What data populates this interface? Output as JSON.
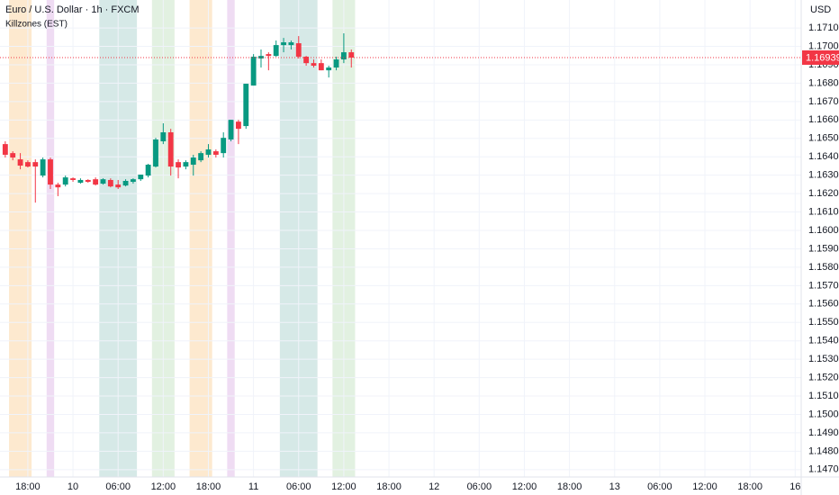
{
  "chart_data": {
    "type": "candlestick",
    "title": "Euro / U.S. Dollar · 1h · FXCM",
    "indicator": "Killzones (EST)",
    "currency": "USD",
    "up_color": "#089981",
    "down_color": "#f23645",
    "grid": true,
    "xlim": [
      -9.7,
      96.8
    ],
    "ylim": [
      1.1466,
      1.17252
    ],
    "xticks": [
      {
        "value": -6,
        "label": "18:00"
      },
      {
        "value": 0,
        "label": "10"
      },
      {
        "value": 6,
        "label": "06:00"
      },
      {
        "value": 12,
        "label": "12:00"
      },
      {
        "value": 18,
        "label": "18:00"
      },
      {
        "value": 24,
        "label": "11"
      },
      {
        "value": 30,
        "label": "06:00"
      },
      {
        "value": 36,
        "label": "12:00"
      },
      {
        "value": 42,
        "label": "18:00"
      },
      {
        "value": 48,
        "label": "12"
      },
      {
        "value": 54,
        "label": "06:00"
      },
      {
        "value": 60,
        "label": "12:00"
      },
      {
        "value": 66,
        "label": "18:00"
      },
      {
        "value": 72,
        "label": "13"
      },
      {
        "value": 78,
        "label": "06:00"
      },
      {
        "value": 84,
        "label": "12:00"
      },
      {
        "value": 90,
        "label": "18:00"
      },
      {
        "value": 96,
        "label": "16"
      }
    ],
    "yticks": [
      {
        "value": 1.147,
        "label": "1.14700"
      },
      {
        "value": 1.148,
        "label": "1.14800"
      },
      {
        "value": 1.149,
        "label": "1.14900"
      },
      {
        "value": 1.15,
        "label": "1.15000"
      },
      {
        "value": 1.151,
        "label": "1.15100"
      },
      {
        "value": 1.152,
        "label": "1.15200"
      },
      {
        "value": 1.153,
        "label": "1.15300"
      },
      {
        "value": 1.154,
        "label": "1.15400"
      },
      {
        "value": 1.155,
        "label": "1.15500"
      },
      {
        "value": 1.156,
        "label": "1.15600"
      },
      {
        "value": 1.157,
        "label": "1.15700"
      },
      {
        "value": 1.158,
        "label": "1.15800"
      },
      {
        "value": 1.159,
        "label": "1.15900"
      },
      {
        "value": 1.16,
        "label": "1.16000"
      },
      {
        "value": 1.161,
        "label": "1.16100"
      },
      {
        "value": 1.162,
        "label": "1.16200"
      },
      {
        "value": 1.163,
        "label": "1.16300"
      },
      {
        "value": 1.164,
        "label": "1.16400"
      },
      {
        "value": 1.165,
        "label": "1.16500"
      },
      {
        "value": 1.166,
        "label": "1.16600"
      },
      {
        "value": 1.167,
        "label": "1.16700"
      },
      {
        "value": 1.168,
        "label": "1.16800"
      },
      {
        "value": 1.169,
        "label": "1.16900"
      },
      {
        "value": 1.17,
        "label": "1.17000"
      },
      {
        "value": 1.171,
        "label": "1.17100"
      }
    ],
    "zones": [
      {
        "start": -8.5,
        "end": -5.5,
        "color": "#fde9cf"
      },
      {
        "start": -3.5,
        "end": -2.5,
        "color": "#efdcf3"
      },
      {
        "start": 3.5,
        "end": 8.5,
        "color": "#d6e9e7"
      },
      {
        "start": 10.5,
        "end": 13.5,
        "color": "#e2f1e1"
      },
      {
        "start": 15.5,
        "end": 18.5,
        "color": "#fde9cf"
      },
      {
        "start": 20.5,
        "end": 21.5,
        "color": "#efdcf3"
      },
      {
        "start": 27.5,
        "end": 32.5,
        "color": "#d6e9e7"
      },
      {
        "start": 34.5,
        "end": 37.5,
        "color": "#e2f1e1"
      }
    ],
    "last_price": 1.16939,
    "x": [
      -9,
      -8,
      -7,
      -6,
      -5,
      -4,
      -3,
      -2,
      -1,
      0,
      1,
      2,
      3,
      4,
      5,
      6,
      7,
      8,
      9,
      10,
      11,
      12,
      13,
      14,
      15,
      16,
      17,
      18,
      19,
      20,
      21,
      22,
      23,
      24,
      25,
      26,
      27,
      28,
      29,
      30,
      31,
      32,
      33,
      34,
      35,
      36,
      37
    ],
    "open": [
      1.16469,
      1.1642,
      1.16386,
      1.16371,
      1.16371,
      1.16298,
      1.16386,
      1.16249,
      1.16249,
      1.16283,
      1.16259,
      1.16274,
      1.16278,
      1.16254,
      1.16274,
      1.16249,
      1.16244,
      1.16264,
      1.16278,
      1.16298,
      1.16347,
      1.16484,
      1.16533,
      1.16371,
      1.16347,
      1.16357,
      1.16381,
      1.16411,
      1.1643,
      1.1642,
      1.16494,
      1.16591,
      1.16567,
      1.16787,
      1.16934,
      1.16958,
      1.16948,
      1.17007,
      1.17007,
      1.17017,
      1.16944,
      1.16909,
      1.16909,
      1.1687,
      1.16885,
      1.16929,
      1.16968
    ],
    "high": [
      1.16484,
      1.1643,
      1.1642,
      1.16381,
      1.16386,
      1.16396,
      1.16396,
      1.16259,
      1.16298,
      1.16288,
      1.16283,
      1.16278,
      1.16288,
      1.16283,
      1.16283,
      1.16274,
      1.16278,
      1.16283,
      1.16303,
      1.16362,
      1.16503,
      1.16582,
      1.16552,
      1.16386,
      1.16381,
      1.16411,
      1.1643,
      1.16469,
      1.1644,
      1.16533,
      1.16601,
      1.16601,
      1.16797,
      1.16958,
      1.16983,
      1.16968,
      1.17032,
      1.17046,
      1.17032,
      1.17056,
      1.16948,
      1.16929,
      1.16929,
      1.16895,
      1.16944,
      1.17071,
      1.16983
    ],
    "low": [
      1.16396,
      1.16381,
      1.16332,
      1.16342,
      1.16151,
      1.16288,
      1.16225,
      1.16186,
      1.16239,
      1.16264,
      1.16254,
      1.16259,
      1.16244,
      1.16249,
      1.16234,
      1.16225,
      1.16239,
      1.16254,
      1.16269,
      1.16288,
      1.16342,
      1.16469,
      1.16298,
      1.16283,
      1.16332,
      1.16298,
      1.16371,
      1.16396,
      1.16396,
      1.16396,
      1.16484,
      1.16469,
      1.16552,
      1.16787,
      1.16885,
      1.1687,
      1.16944,
      1.16968,
      1.16983,
      1.16934,
      1.16895,
      1.16885,
      1.1687,
      1.16831,
      1.1687,
      1.16909,
      1.16885
    ],
    "close": [
      1.16411,
      1.16396,
      1.16352,
      1.16347,
      1.16347,
      1.16386,
      1.16249,
      1.16234,
      1.16288,
      1.16274,
      1.16274,
      1.16264,
      1.16249,
      1.16278,
      1.16239,
      1.16234,
      1.16269,
      1.16278,
      1.16303,
      1.16357,
      1.16494,
      1.16533,
      1.16347,
      1.16342,
      1.16371,
      1.16396,
      1.1642,
      1.1644,
      1.16411,
      1.16503,
      1.16601,
      1.16552,
      1.16797,
      1.16944,
      1.16948,
      1.16948,
      1.17007,
      1.17022,
      1.17022,
      1.16944,
      1.16909,
      1.16895,
      1.1687,
      1.16885,
      1.16929,
      1.16968,
      1.16939
    ]
  }
}
